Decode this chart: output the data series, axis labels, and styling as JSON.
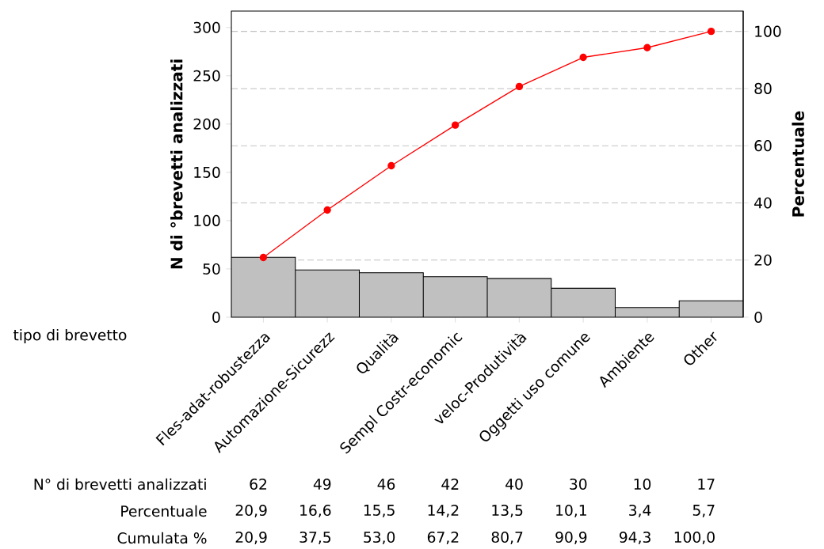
{
  "chart_data": {
    "type": "bar",
    "categories": [
      "Fles-adat-robustezza",
      "Automazione-Sicurezz",
      "Qualità",
      "Sempl Costr-economic",
      "veloc-Produtività",
      "Oggetti uso comune",
      "Ambiente",
      "Other"
    ],
    "series": [
      {
        "color": "#c0c0c0",
        "values": [
          62,
          49,
          46,
          42,
          40,
          30,
          10,
          17
        ],
        "value_labels": [
          "62",
          "49",
          "46",
          "42",
          "40",
          "30",
          "10",
          "17"
        ]
      },
      {
        "type": "line",
        "axis": "y2",
        "color": "#ff0000",
        "values": [
          20.9,
          37.5,
          53.0,
          67.2,
          80.7,
          90.9,
          94.3,
          100.0
        ],
        "value_labels": [
          "20,9",
          "37,5",
          "53,0",
          "67,2",
          "80,7",
          "90,9",
          "94,3",
          "100,0"
        ]
      }
    ],
    "annotations": [
      "N° di brevetti analizzati",
      "Percentuale",
      "Cumulata %",
      "20,9",
      "16,6",
      "15,5",
      "14,2",
      "13,5",
      "10,1",
      "3,4",
      "5,7"
    ],
    "xlabel": "tipo di brevetto",
    "ylabel": "N di °brevetti analizzati",
    "y2label": "Percentuale",
    "ylim": [
      0,
      317
    ],
    "yticks": [
      0,
      50,
      100,
      150,
      200,
      250,
      300
    ],
    "y2lim": [
      0,
      107.1
    ],
    "y2ticks": [
      0,
      20,
      40,
      60,
      80,
      100
    ],
    "ref_lines": [
      {
        "axis": "y2",
        "value": 20,
        "color": "#c0c0c0",
        "line_style": "dashed"
      },
      {
        "axis": "y2",
        "value": 40,
        "color": "#c0c0c0",
        "line_style": "dashed"
      },
      {
        "axis": "y2",
        "value": 60,
        "color": "#c0c0c0",
        "line_style": "dashed"
      },
      {
        "axis": "y2",
        "value": 80,
        "color": "#c0c0c0",
        "line_style": "dashed"
      },
      {
        "axis": "y2",
        "value": 100,
        "color": "#c0c0c0",
        "line_style": "dashed"
      }
    ],
    "marker": "circle",
    "line_style": "solid"
  }
}
